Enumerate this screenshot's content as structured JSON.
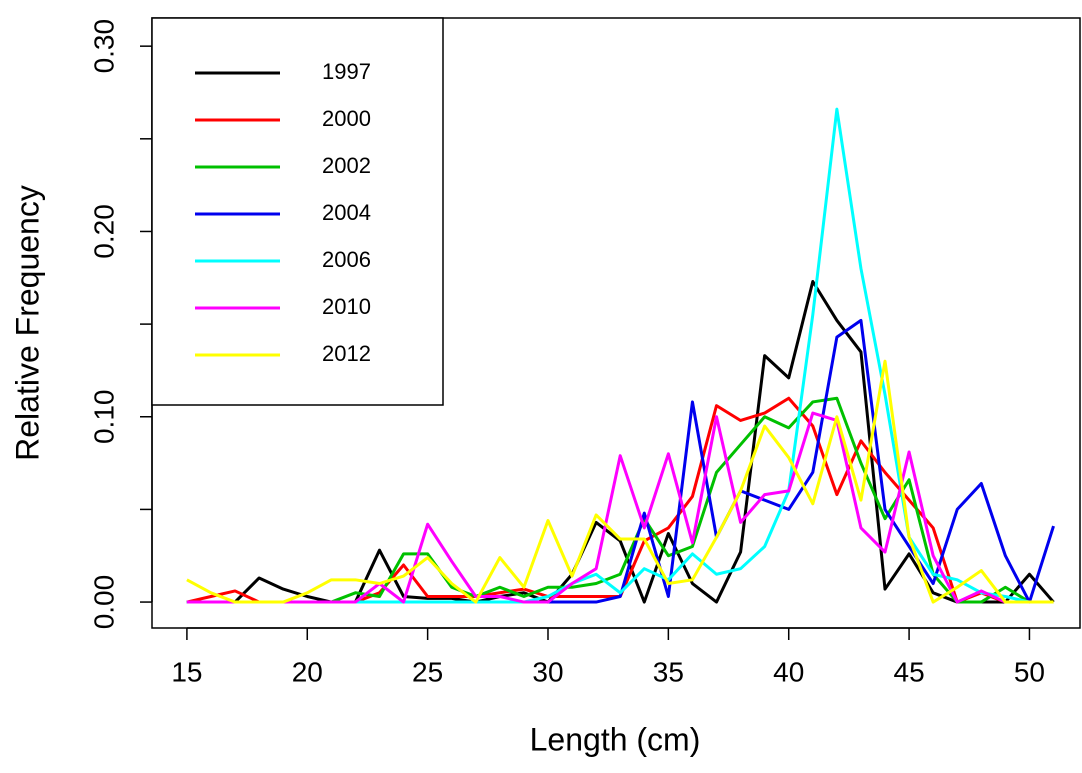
{
  "chart_data": {
    "type": "line",
    "xlabel": "Length (cm)",
    "ylabel": "Relative Frequency",
    "x": [
      15,
      16,
      17,
      18,
      19,
      20,
      21,
      22,
      23,
      24,
      25,
      26,
      27,
      28,
      29,
      30,
      31,
      32,
      33,
      34,
      35,
      36,
      37,
      38,
      39,
      40,
      41,
      42,
      43,
      44,
      45,
      46,
      47,
      48,
      49,
      50,
      51
    ],
    "series": [
      {
        "name": "1997",
        "color": "#000000",
        "values": [
          0,
          0,
          0,
          0.013,
          0.007,
          0.003,
          0,
          0,
          0.028,
          0.003,
          0.002,
          0.002,
          0,
          0.003,
          0.005,
          0,
          0.015,
          0.043,
          0.033,
          0,
          0.037,
          0.01,
          0,
          0.027,
          0.133,
          0.121,
          0.173,
          0.152,
          0.135,
          0.007,
          0.026,
          0.005,
          0,
          0,
          0,
          0.015,
          0
        ]
      },
      {
        "name": "2000",
        "color": "#ff0000",
        "values": [
          0,
          0.003,
          0.006,
          0,
          0,
          0,
          0,
          0,
          0.005,
          0.02,
          0.003,
          0.003,
          0.003,
          0.005,
          0.007,
          0.003,
          0.003,
          0.003,
          0.003,
          0.033,
          0.04,
          0.057,
          0.106,
          0.098,
          0.102,
          0.11,
          0.095,
          0.058,
          0.087,
          0.07,
          0.055,
          0.04,
          0,
          0.005,
          0,
          0,
          0
        ]
      },
      {
        "name": "2002",
        "color": "#00c000",
        "values": [
          0,
          0,
          0,
          0,
          0,
          0,
          0,
          0.005,
          0.003,
          0.026,
          0.026,
          0.008,
          0.003,
          0.008,
          0.003,
          0.008,
          0.008,
          0.01,
          0.015,
          0.045,
          0.025,
          0.03,
          0.07,
          0.085,
          0.1,
          0.094,
          0.108,
          0.11,
          0.075,
          0.045,
          0.066,
          0.015,
          0,
          0,
          0.008,
          0,
          0
        ]
      },
      {
        "name": "2004",
        "color": "#0000ee",
        "values": [
          0,
          0,
          0,
          0,
          0,
          0,
          0,
          0,
          0,
          0,
          0,
          0,
          0,
          0,
          0,
          0,
          0,
          0,
          0.003,
          0.048,
          0.003,
          0.108,
          0.035,
          0.06,
          0.055,
          0.05,
          0.07,
          0.143,
          0.152,
          0.05,
          0.03,
          0.01,
          0.05,
          0.064,
          0.025,
          0,
          0.041
        ]
      },
      {
        "name": "2006",
        "color": "#00ffff",
        "values": [
          0,
          0,
          0,
          0,
          0,
          0,
          0,
          0,
          0,
          0,
          0,
          0,
          0,
          0,
          0,
          0.003,
          0.01,
          0.015,
          0.005,
          0.018,
          0.012,
          0.026,
          0.015,
          0.018,
          0.03,
          0.06,
          0.155,
          0.266,
          0.18,
          0.112,
          0.035,
          0.015,
          0.012,
          0.005,
          0.003,
          0,
          0
        ]
      },
      {
        "name": "2010",
        "color": "#ff00ff",
        "values": [
          0,
          0,
          0,
          0,
          0,
          0,
          0,
          0,
          0.01,
          0,
          0.042,
          0.022,
          0.003,
          0.003,
          0,
          0,
          0.01,
          0.018,
          0.079,
          0.04,
          0.08,
          0.032,
          0.1,
          0.043,
          0.058,
          0.06,
          0.102,
          0.098,
          0.04,
          0.027,
          0.081,
          0.025,
          0,
          0.006,
          0,
          0,
          0
        ]
      },
      {
        "name": "2012",
        "color": "#ffff00",
        "values": [
          0.012,
          0.005,
          0,
          0,
          0,
          0.005,
          0.012,
          0.012,
          0.01,
          0.014,
          0.024,
          0.01,
          0,
          0.024,
          0.008,
          0.044,
          0.014,
          0.047,
          0.034,
          0.034,
          0.01,
          0.012,
          0.035,
          0.06,
          0.095,
          0.078,
          0.053,
          0.1,
          0.055,
          0.13,
          0.035,
          0,
          0.008,
          0.017,
          0,
          0,
          0
        ]
      }
    ],
    "xlim": [
      13.55,
      52.1
    ],
    "xticks": [
      15,
      20,
      25,
      30,
      35,
      40,
      45,
      50
    ],
    "ylim": [
      -0.014,
      0.3152
    ],
    "yticks": [
      {
        "value": 0,
        "label": "0.00"
      },
      {
        "value": 0.05,
        "label": null
      },
      {
        "value": 0.1,
        "label": "0.10"
      },
      {
        "value": 0.15,
        "label": null
      },
      {
        "value": 0.2,
        "label": "0.20"
      },
      {
        "value": 0.25,
        "label": null
      },
      {
        "value": 0.3,
        "label": "0.30"
      }
    ],
    "legend": "topleft"
  }
}
